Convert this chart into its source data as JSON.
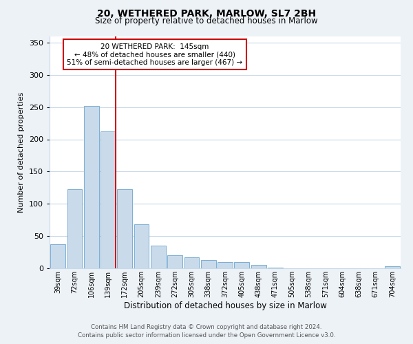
{
  "title_line1": "20, WETHERED PARK, MARLOW, SL7 2BH",
  "title_line2": "Size of property relative to detached houses in Marlow",
  "xlabel": "Distribution of detached houses by size in Marlow",
  "ylabel": "Number of detached properties",
  "bar_labels": [
    "39sqm",
    "72sqm",
    "106sqm",
    "139sqm",
    "172sqm",
    "205sqm",
    "239sqm",
    "272sqm",
    "305sqm",
    "338sqm",
    "372sqm",
    "405sqm",
    "438sqm",
    "471sqm",
    "505sqm",
    "538sqm",
    "571sqm",
    "604sqm",
    "638sqm",
    "671sqm",
    "704sqm"
  ],
  "bar_values": [
    37,
    123,
    252,
    212,
    123,
    68,
    35,
    20,
    17,
    13,
    10,
    10,
    5,
    1,
    0,
    0,
    0,
    0,
    0,
    0,
    3
  ],
  "bar_color": "#c9daea",
  "bar_edge_color": "#7bafd4",
  "vline_x_index": 3,
  "vline_color": "#cc0000",
  "annotation_title": "20 WETHERED PARK:  145sqm",
  "annotation_line2": "← 48% of detached houses are smaller (440)",
  "annotation_line3": "51% of semi-detached houses are larger (467) →",
  "annotation_box_color": "#ffffff",
  "annotation_box_edge": "#cc0000",
  "ylim": [
    0,
    360
  ],
  "yticks": [
    0,
    50,
    100,
    150,
    200,
    250,
    300,
    350
  ],
  "footer_line1": "Contains HM Land Registry data © Crown copyright and database right 2024.",
  "footer_line2": "Contains public sector information licensed under the Open Government Licence v3.0.",
  "bg_color": "#edf2f7",
  "plot_bg_color": "#ffffff",
  "grid_color": "#c8d8e8"
}
